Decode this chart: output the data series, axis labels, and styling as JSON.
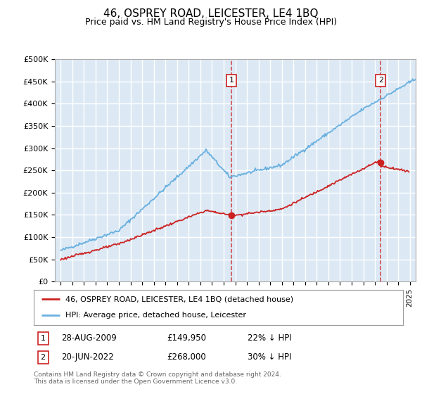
{
  "title": "46, OSPREY ROAD, LEICESTER, LE4 1BQ",
  "subtitle": "Price paid vs. HM Land Registry's House Price Index (HPI)",
  "footer": "Contains HM Land Registry data © Crown copyright and database right 2024.\nThis data is licensed under the Open Government Licence v3.0.",
  "legend_line1": "46, OSPREY ROAD, LEICESTER, LE4 1BQ (detached house)",
  "legend_line2": "HPI: Average price, detached house, Leicester",
  "annotation1_date": "28-AUG-2009",
  "annotation1_price": "£149,950",
  "annotation1_hpi": "22% ↓ HPI",
  "annotation2_date": "20-JUN-2022",
  "annotation2_price": "£268,000",
  "annotation2_hpi": "30% ↓ HPI",
  "hpi_color": "#6ab0e0",
  "price_color": "#cc2222",
  "plot_bg_color": "#dce9f5",
  "grid_color": "#ffffff",
  "yticks": [
    0,
    50000,
    100000,
    150000,
    200000,
    250000,
    300000,
    350000,
    400000,
    450000,
    500000
  ],
  "xlim_start": 1994.5,
  "xlim_end": 2025.5,
  "sale1_x": 2009.667,
  "sale1_y": 149950,
  "sale2_x": 2022.5,
  "sale2_y": 268000
}
